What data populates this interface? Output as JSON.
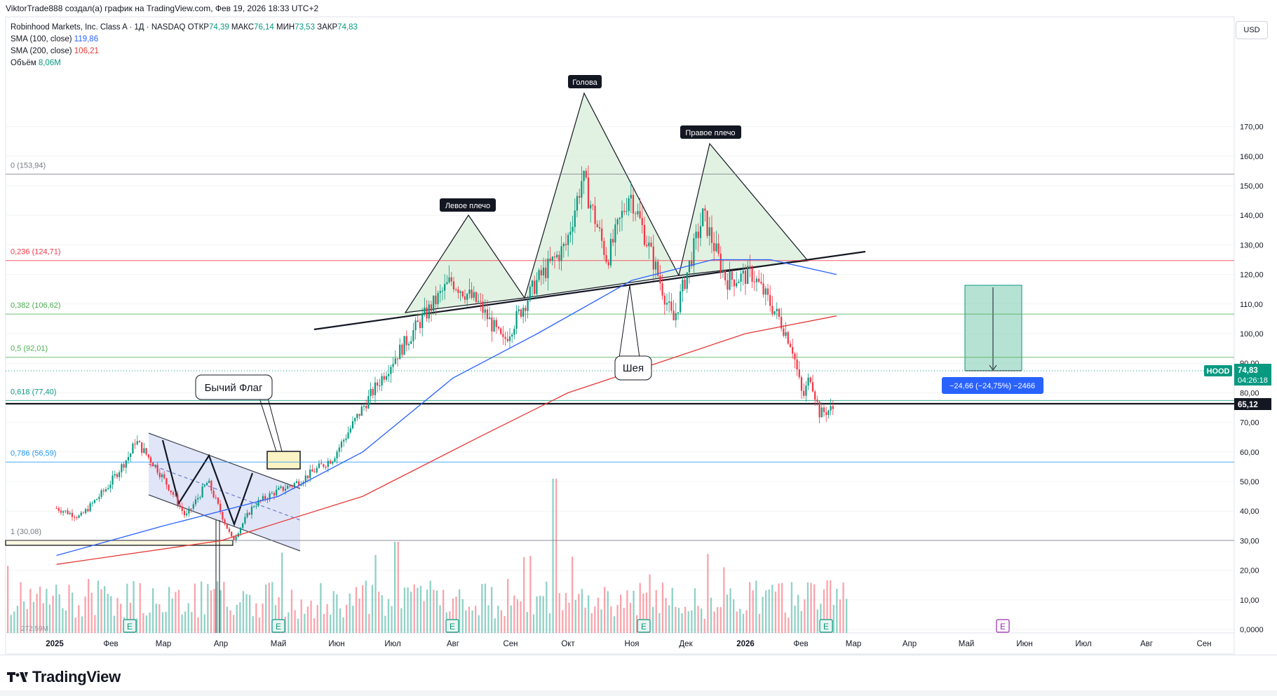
{
  "header": {
    "credit": "ViktorTrade888 создал(а) график на TradingView.com, Фев 19, 2026 18:33 UTC+2"
  },
  "legend": {
    "symbol": "Robinhood Markets, Inc. Class A · 1Д · NASDAQ",
    "ohlc": [
      {
        "label": "ОТКР",
        "value": "74,39"
      },
      {
        "label": "МАКС",
        "value": "76,14"
      },
      {
        "label": "МИН",
        "value": "73,53"
      },
      {
        "label": "ЗАКР",
        "value": "74,83"
      }
    ],
    "sma100_label": "SMA (100, close)",
    "sma100_value": "119,86",
    "sma200_label": "SMA (200, close)",
    "sma200_value": "106,21",
    "volume_label": "Объём",
    "volume_value": "8,06M"
  },
  "currency": "USD",
  "price_badges": {
    "ticker": "HOOD",
    "last": "74,83",
    "timer": "04:26:18",
    "level": "65,12"
  },
  "measure_label": "−24,66 (−24,75%) −2466",
  "fib_levels": [
    {
      "label": "0 (153,94)",
      "value": 153.94,
      "color": "#787b86"
    },
    {
      "label": "0,236 (124,71)",
      "value": 124.71,
      "color": "#f23645"
    },
    {
      "label": "0,382 (106,62)",
      "value": 106.62,
      "color": "#4caf50"
    },
    {
      "label": "0,5 (92,01)",
      "value": 92.01,
      "color": "#4caf50"
    },
    {
      "label": "0,618 (77,40)",
      "value": 77.4,
      "color": "#089981"
    },
    {
      "label": "0,786 (56,59)",
      "value": 56.59,
      "color": "#2196f3"
    },
    {
      "label": "1 (30,08)",
      "value": 30.08,
      "color": "#787b86"
    }
  ],
  "annotations": {
    "head": "Голова",
    "left_shoulder": "Левое плечо",
    "right_shoulder": "Правое плечо",
    "neck": "Шея",
    "bull_flag": "Бычий Флаг",
    "earnings_marker": "E",
    "small_volume_label": "272,59M"
  },
  "brand": "TradingView",
  "colors": {
    "up": "#089981",
    "down": "#f23645",
    "sma100": "#2962ff",
    "sma200": "#e53935",
    "fill_green": "#4caf50"
  },
  "chart_data": {
    "type": "candlestick",
    "title": "Robinhood Markets, Inc. Class A · 1Д · NASDAQ",
    "y_range": [
      0,
      170
    ],
    "y_ticks": [
      "170,00",
      "160,00",
      "150,00",
      "140,00",
      "130,00",
      "120,00",
      "110,00",
      "100,00",
      "90,00",
      "80,00",
      "70,00",
      "60,00",
      "50,00",
      "40,00",
      "30,00",
      "20,00",
      "10,00",
      "0,0000"
    ],
    "x_ticks": [
      "2025",
      "Фев",
      "Мар",
      "Апр",
      "Май",
      "Июн",
      "Июл",
      "Авг",
      "Сен",
      "Окт",
      "Ноя",
      "Дек",
      "2026",
      "Фев",
      "Мар",
      "Апр",
      "Май",
      "Июн",
      "Июл",
      "Авг",
      "Сен"
    ],
    "price_path": [
      [
        "2025-01-02",
        41
      ],
      [
        "2025-01-15",
        38
      ],
      [
        "2025-01-30",
        48
      ],
      [
        "2025-02-12",
        60
      ],
      [
        "2025-02-14",
        64
      ],
      [
        "2025-02-25",
        55
      ],
      [
        "2025-03-07",
        45
      ],
      [
        "2025-03-13",
        38
      ],
      [
        "2025-03-25",
        50
      ],
      [
        "2025-04-07",
        30
      ],
      [
        "2025-04-18",
        42
      ],
      [
        "2025-04-28",
        46
      ],
      [
        "2025-05-12",
        50
      ],
      [
        "2025-05-30",
        58
      ],
      [
        "2025-06-15",
        75
      ],
      [
        "2025-06-30",
        90
      ],
      [
        "2025-07-15",
        104
      ],
      [
        "2025-07-31",
        118
      ],
      [
        "2025-08-15",
        110
      ],
      [
        "2025-08-28",
        97
      ],
      [
        "2025-09-15",
        118
      ],
      [
        "2025-09-30",
        130
      ],
      [
        "2025-10-08",
        153
      ],
      [
        "2025-10-20",
        125
      ],
      [
        "2025-10-31",
        148
      ],
      [
        "2025-11-10",
        130
      ],
      [
        "2025-11-24",
        104
      ],
      [
        "2025-12-10",
        140
      ],
      [
        "2025-12-22",
        118
      ],
      [
        "2026-01-05",
        120
      ],
      [
        "2026-01-20",
        105
      ],
      [
        "2026-01-27",
        96
      ],
      [
        "2026-02-02",
        78
      ],
      [
        "2026-02-06",
        86
      ],
      [
        "2026-02-11",
        73
      ],
      [
        "2026-02-19",
        74.83
      ]
    ],
    "sma100_path": [
      [
        "2025-01-02",
        25
      ],
      [
        "2025-03-01",
        35
      ],
      [
        "2025-05-01",
        45
      ],
      [
        "2025-06-15",
        60
      ],
      [
        "2025-08-01",
        85
      ],
      [
        "2025-09-15",
        100
      ],
      [
        "2025-11-01",
        118
      ],
      [
        "2025-12-15",
        125
      ],
      [
        "2026-01-15",
        125
      ],
      [
        "2026-02-20",
        120
      ]
    ],
    "sma200_path": [
      [
        "2025-01-02",
        22
      ],
      [
        "2025-04-01",
        30
      ],
      [
        "2025-06-15",
        45
      ],
      [
        "2025-08-15",
        65
      ],
      [
        "2025-10-01",
        80
      ],
      [
        "2025-11-15",
        90
      ],
      [
        "2026-01-01",
        100
      ],
      [
        "2026-02-20",
        106
      ]
    ],
    "volume_peak": "272,59M"
  }
}
